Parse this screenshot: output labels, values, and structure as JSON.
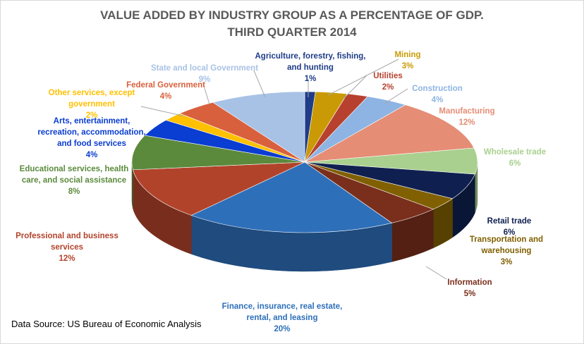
{
  "chart_data": {
    "type": "pie3d",
    "title": "VALUE ADDED BY INDUSTRY GROUP AS A PERCENTAGE OF GDP.",
    "subtitle": "THIRD QUARTER 2014",
    "source": "Data Source: US Bureau of Economic Analysis",
    "categories": [
      "Agriculture, forestry, fishing, and hunting",
      "Mining",
      "Utilities",
      "Construction",
      "Manufacturing",
      "Wholesale trade",
      "Retail trade",
      "Transportation and warehousing",
      "Information",
      "Finance, insurance, real estate, rental, and leasing",
      "Professional and business services",
      "Educational services, health care, and social assistance",
      "Arts, entertainment, recreation, accommodation, and food services",
      "Other services, except government",
      "Federal Government",
      "State and local Government"
    ],
    "values": [
      1,
      3,
      2,
      4,
      12,
      6,
      6,
      3,
      5,
      20,
      12,
      8,
      4,
      2,
      4,
      9
    ],
    "value_labels": [
      "1%",
      "3%",
      "2%",
      "4%",
      "12%",
      "6%",
      "6%",
      "3%",
      "5%",
      "20%",
      "12%",
      "8%",
      "4%",
      "2%",
      "4%",
      "9%"
    ],
    "colors": [
      "#1f3c88",
      "#c99a06",
      "#b7412e",
      "#8eb4e3",
      "#e58d75",
      "#a9d08e",
      "#0f2050",
      "#806000",
      "#7a2f1c",
      "#2e6fba",
      "#b2432b",
      "#5b8a3c",
      "#0a3dd1",
      "#ffc000",
      "#d9603d",
      "#a8c2e6"
    ]
  }
}
